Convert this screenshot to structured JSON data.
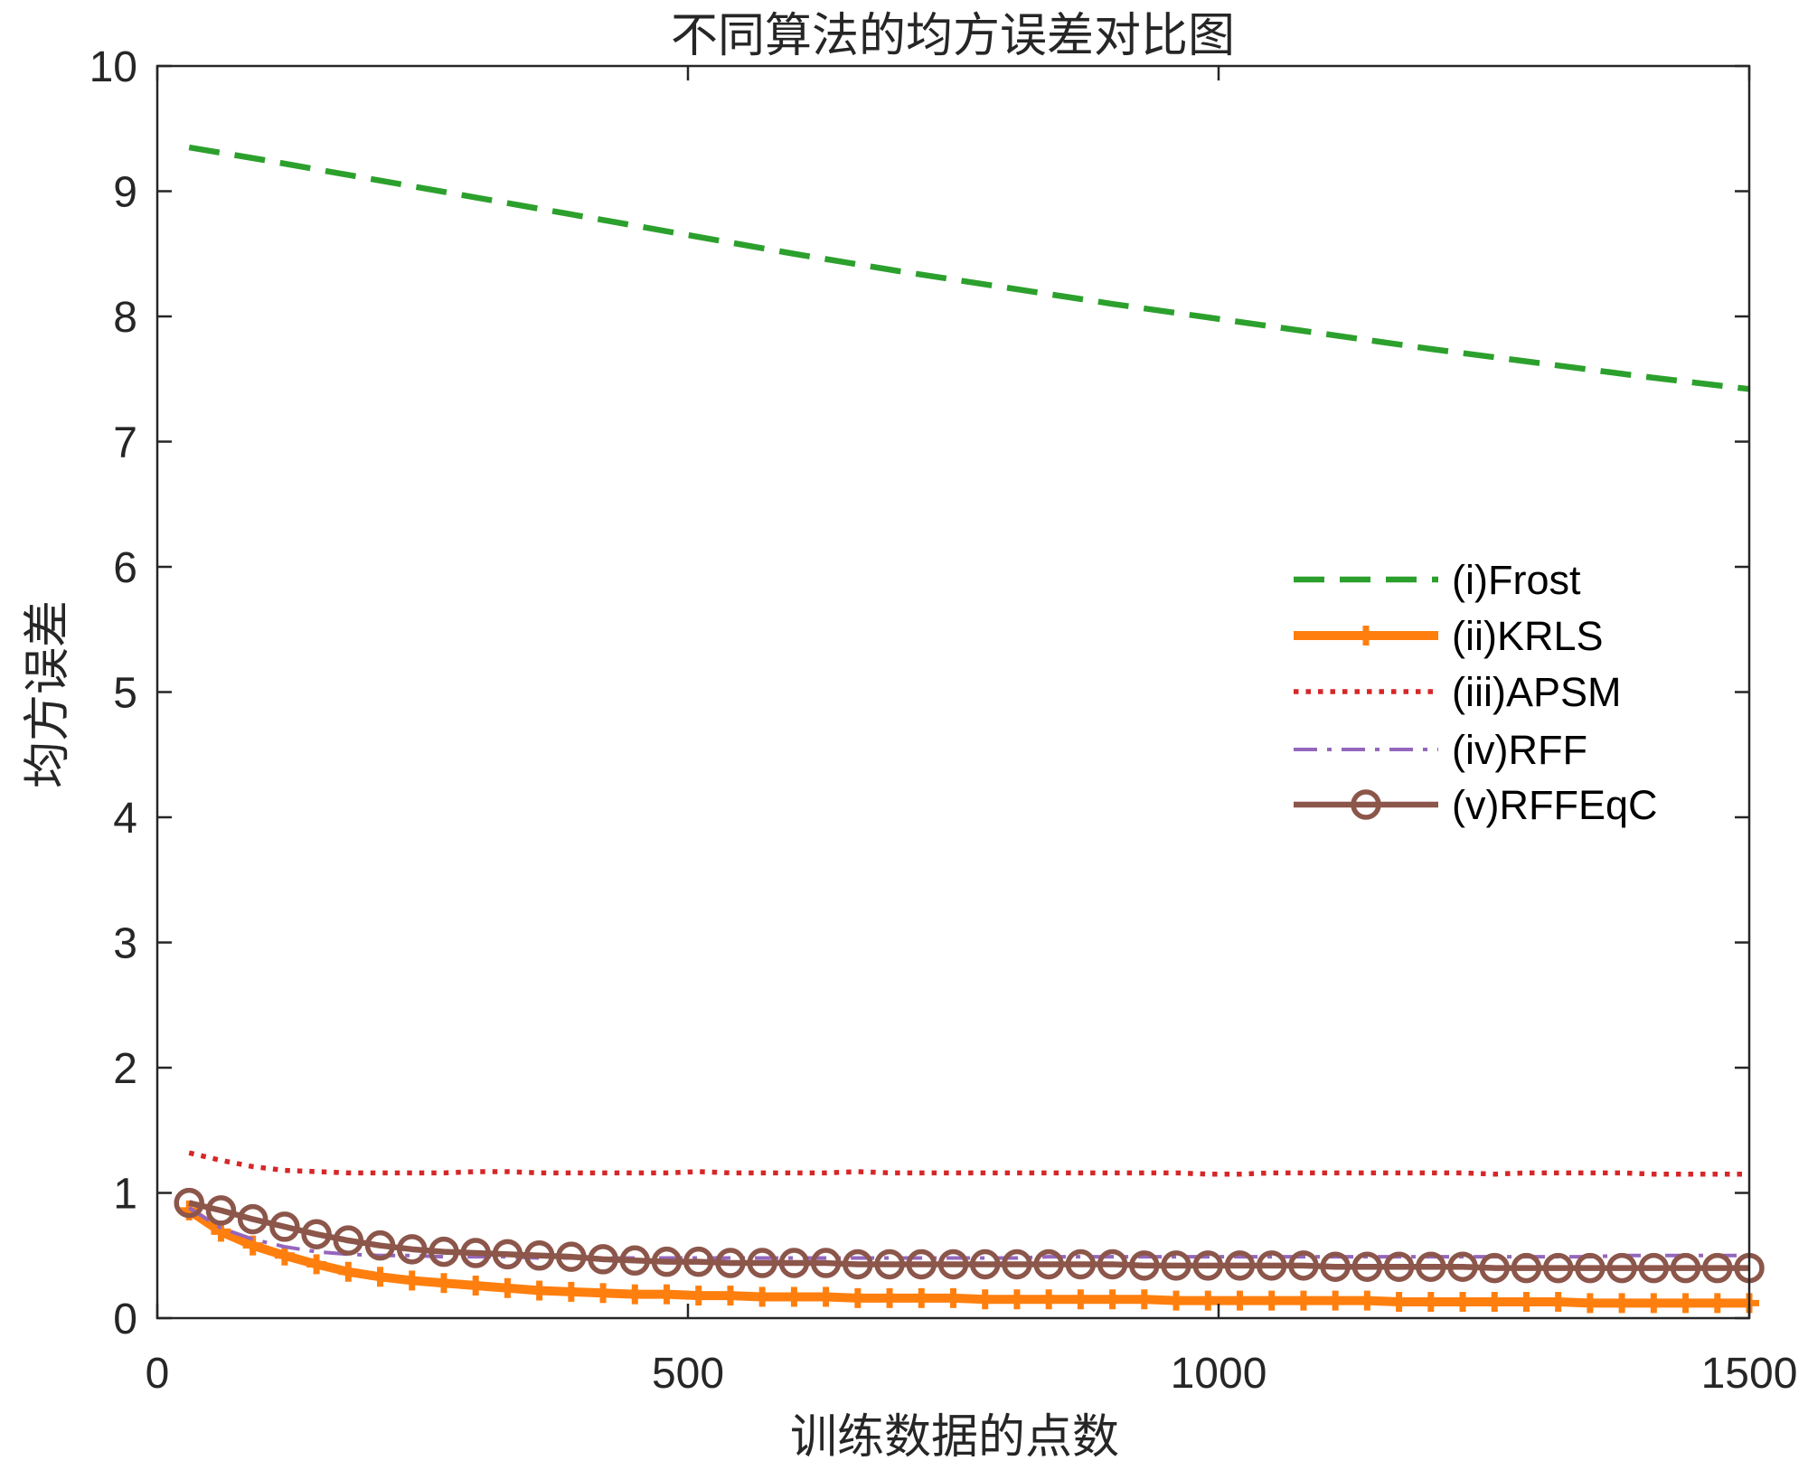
{
  "chart_data": {
    "type": "line",
    "title": "不同算法的均方误差对比图",
    "xlabel": "训练数据的点数",
    "ylabel": "均方误差",
    "xlim": [
      0,
      1500
    ],
    "ylim": [
      0,
      10
    ],
    "xticks": [
      0,
      500,
      1000,
      1500
    ],
    "yticks": [
      0,
      1,
      2,
      3,
      4,
      5,
      6,
      7,
      8,
      9,
      10
    ],
    "grid": false,
    "legend_location": "right",
    "x": [
      30,
      60,
      90,
      120,
      150,
      180,
      210,
      240,
      270,
      300,
      330,
      360,
      390,
      420,
      450,
      480,
      510,
      540,
      570,
      600,
      630,
      660,
      690,
      720,
      750,
      780,
      810,
      840,
      870,
      900,
      930,
      960,
      990,
      1020,
      1050,
      1080,
      1110,
      1140,
      1170,
      1200,
      1230,
      1260,
      1290,
      1320,
      1350,
      1380,
      1410,
      1440,
      1470,
      1500
    ],
    "series": [
      {
        "name": "(i)Frost",
        "color": "#2ca02c",
        "linestyle": "dashed",
        "marker": "none",
        "x": [
          30,
          100,
          200,
          300,
          400,
          500,
          600,
          700,
          800,
          900,
          1000,
          1100,
          1200,
          1300,
          1400,
          1500
        ],
        "values": [
          9.35,
          9.25,
          9.1,
          8.95,
          8.8,
          8.65,
          8.5,
          8.36,
          8.23,
          8.1,
          7.98,
          7.86,
          7.74,
          7.63,
          7.52,
          7.42
        ]
      },
      {
        "name": "(ii)KRLS",
        "color": "#ff7f0e",
        "linestyle": "solid",
        "marker": "+",
        "values": [
          0.86,
          0.69,
          0.58,
          0.5,
          0.43,
          0.37,
          0.33,
          0.3,
          0.28,
          0.26,
          0.24,
          0.22,
          0.21,
          0.2,
          0.19,
          0.19,
          0.18,
          0.18,
          0.17,
          0.17,
          0.17,
          0.16,
          0.16,
          0.16,
          0.16,
          0.15,
          0.15,
          0.15,
          0.15,
          0.15,
          0.15,
          0.14,
          0.14,
          0.14,
          0.14,
          0.14,
          0.14,
          0.14,
          0.13,
          0.13,
          0.13,
          0.13,
          0.13,
          0.13,
          0.12,
          0.12,
          0.12,
          0.12,
          0.12,
          0.12
        ]
      },
      {
        "name": "(iii)APSM",
        "color": "#d62728",
        "linestyle": "dotted",
        "marker": "none",
        "values": [
          1.32,
          1.26,
          1.21,
          1.18,
          1.17,
          1.16,
          1.16,
          1.16,
          1.16,
          1.17,
          1.17,
          1.16,
          1.16,
          1.16,
          1.16,
          1.16,
          1.17,
          1.16,
          1.16,
          1.16,
          1.16,
          1.17,
          1.16,
          1.16,
          1.16,
          1.16,
          1.16,
          1.16,
          1.16,
          1.16,
          1.16,
          1.16,
          1.15,
          1.15,
          1.16,
          1.16,
          1.16,
          1.16,
          1.16,
          1.16,
          1.16,
          1.15,
          1.16,
          1.16,
          1.16,
          1.16,
          1.15,
          1.15,
          1.15,
          1.15
        ]
      },
      {
        "name": "(iv)RFF",
        "color": "#9467bd",
        "linestyle": "dashdot",
        "marker": "none",
        "values": [
          0.88,
          0.72,
          0.63,
          0.57,
          0.53,
          0.51,
          0.5,
          0.5,
          0.49,
          0.49,
          0.49,
          0.48,
          0.48,
          0.48,
          0.48,
          0.48,
          0.48,
          0.48,
          0.48,
          0.48,
          0.48,
          0.48,
          0.48,
          0.48,
          0.48,
          0.48,
          0.48,
          0.49,
          0.49,
          0.49,
          0.49,
          0.49,
          0.49,
          0.49,
          0.49,
          0.49,
          0.49,
          0.49,
          0.49,
          0.49,
          0.49,
          0.49,
          0.49,
          0.49,
          0.49,
          0.5,
          0.5,
          0.5,
          0.5,
          0.5
        ]
      },
      {
        "name": "(v)RFFEqC",
        "color": "#8c564b",
        "linestyle": "solid",
        "marker": "o",
        "values": [
          0.92,
          0.86,
          0.79,
          0.73,
          0.67,
          0.62,
          0.58,
          0.55,
          0.53,
          0.52,
          0.51,
          0.5,
          0.49,
          0.47,
          0.46,
          0.45,
          0.45,
          0.44,
          0.44,
          0.44,
          0.44,
          0.43,
          0.43,
          0.43,
          0.43,
          0.43,
          0.43,
          0.43,
          0.43,
          0.43,
          0.42,
          0.42,
          0.42,
          0.42,
          0.42,
          0.42,
          0.41,
          0.41,
          0.41,
          0.41,
          0.41,
          0.4,
          0.4,
          0.4,
          0.4,
          0.4,
          0.4,
          0.4,
          0.4,
          0.4
        ]
      }
    ]
  }
}
